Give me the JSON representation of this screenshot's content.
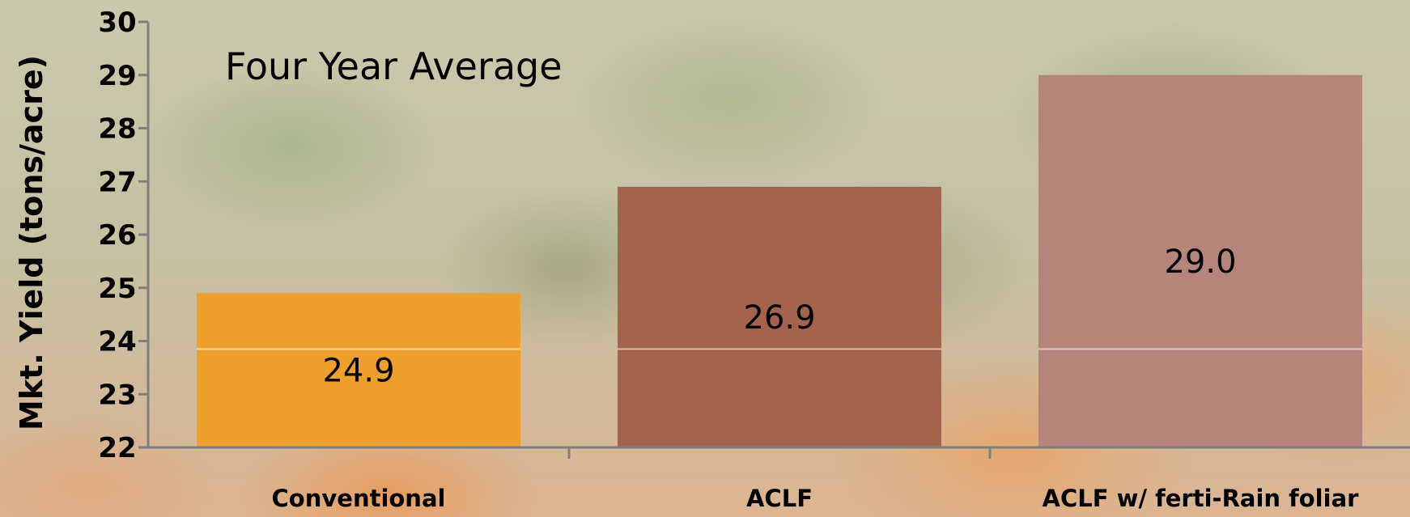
{
  "chart_data": {
    "type": "bar",
    "title": "Four Year Average",
    "xlabel": "",
    "ylabel": "Mkt. Yield (tons/acre)",
    "ylim": [
      22,
      30
    ],
    "yticks": [
      22,
      23,
      24,
      25,
      26,
      27,
      28,
      29,
      30
    ],
    "categories": [
      "Conventional",
      "ACLF",
      "ACLF w/ ferti-Rain foliar"
    ],
    "values": [
      24.9,
      26.9,
      29.0
    ],
    "data_labels": [
      "24.9",
      "26.9",
      "29.0"
    ],
    "bar_colors": [
      "#ee9f2d",
      "#a4634c",
      "#b5847a"
    ],
    "grid": false,
    "legend": "none"
  }
}
